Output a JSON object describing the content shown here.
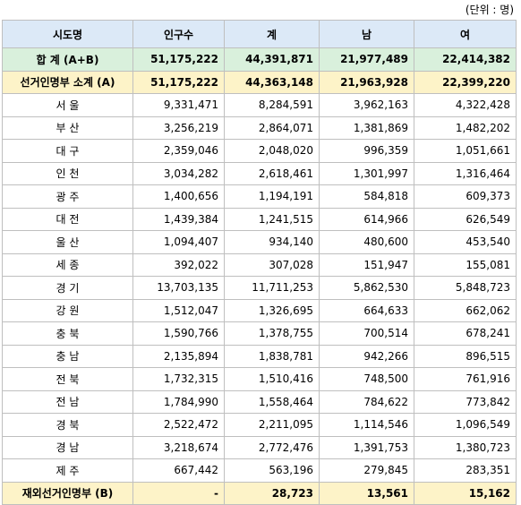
{
  "unit_note": "(단위 : 명)",
  "table": {
    "header": [
      "시도명",
      "인구수",
      "계",
      "남",
      "여"
    ],
    "rows": [
      [
        "합 계 (A+B)",
        "51,175,222",
        "44,391,871",
        "21,977,489",
        "22,414,382"
      ],
      [
        "선거인명부 소계 (A)",
        "51,175,222",
        "44,363,148",
        "21,963,928",
        "22,399,220"
      ],
      [
        "서 울",
        "9,331,471",
        "8,284,591",
        "3,962,163",
        "4,322,428"
      ],
      [
        "부 산",
        "3,256,219",
        "2,864,071",
        "1,381,869",
        "1,482,202"
      ],
      [
        "대 구",
        "2,359,046",
        "2,048,020",
        "996,359",
        "1,051,661"
      ],
      [
        "인 천",
        "3,034,282",
        "2,618,461",
        "1,301,997",
        "1,316,464"
      ],
      [
        "광 주",
        "1,400,656",
        "1,194,191",
        "584,818",
        "609,373"
      ],
      [
        "대 전",
        "1,439,384",
        "1,241,515",
        "614,966",
        "626,549"
      ],
      [
        "울 산",
        "1,094,407",
        "934,140",
        "480,600",
        "453,540"
      ],
      [
        "세 종",
        "392,022",
        "307,028",
        "151,947",
        "155,081"
      ],
      [
        "경 기",
        "13,703,135",
        "11,711,253",
        "5,862,530",
        "5,848,723"
      ],
      [
        "강 원",
        "1,512,047",
        "1,326,695",
        "664,633",
        "662,062"
      ],
      [
        "충 북",
        "1,590,766",
        "1,378,755",
        "700,514",
        "678,241"
      ],
      [
        "충 남",
        "2,135,894",
        "1,838,781",
        "942,266",
        "896,515"
      ],
      [
        "전 북",
        "1,732,315",
        "1,510,416",
        "748,500",
        "761,916"
      ],
      [
        "전 남",
        "1,784,990",
        "1,558,464",
        "784,622",
        "773,842"
      ],
      [
        "경 북",
        "2,522,472",
        "2,211,095",
        "1,114,546",
        "1,096,549"
      ],
      [
        "경 남",
        "3,218,674",
        "2,772,476",
        "1,391,753",
        "1,380,723"
      ],
      [
        "제 주",
        "667,442",
        "563,196",
        "279,845",
        "283,351"
      ],
      [
        "재외선거인명부 (B)",
        "-",
        "28,723",
        "13,561",
        "15,162"
      ]
    ]
  }
}
